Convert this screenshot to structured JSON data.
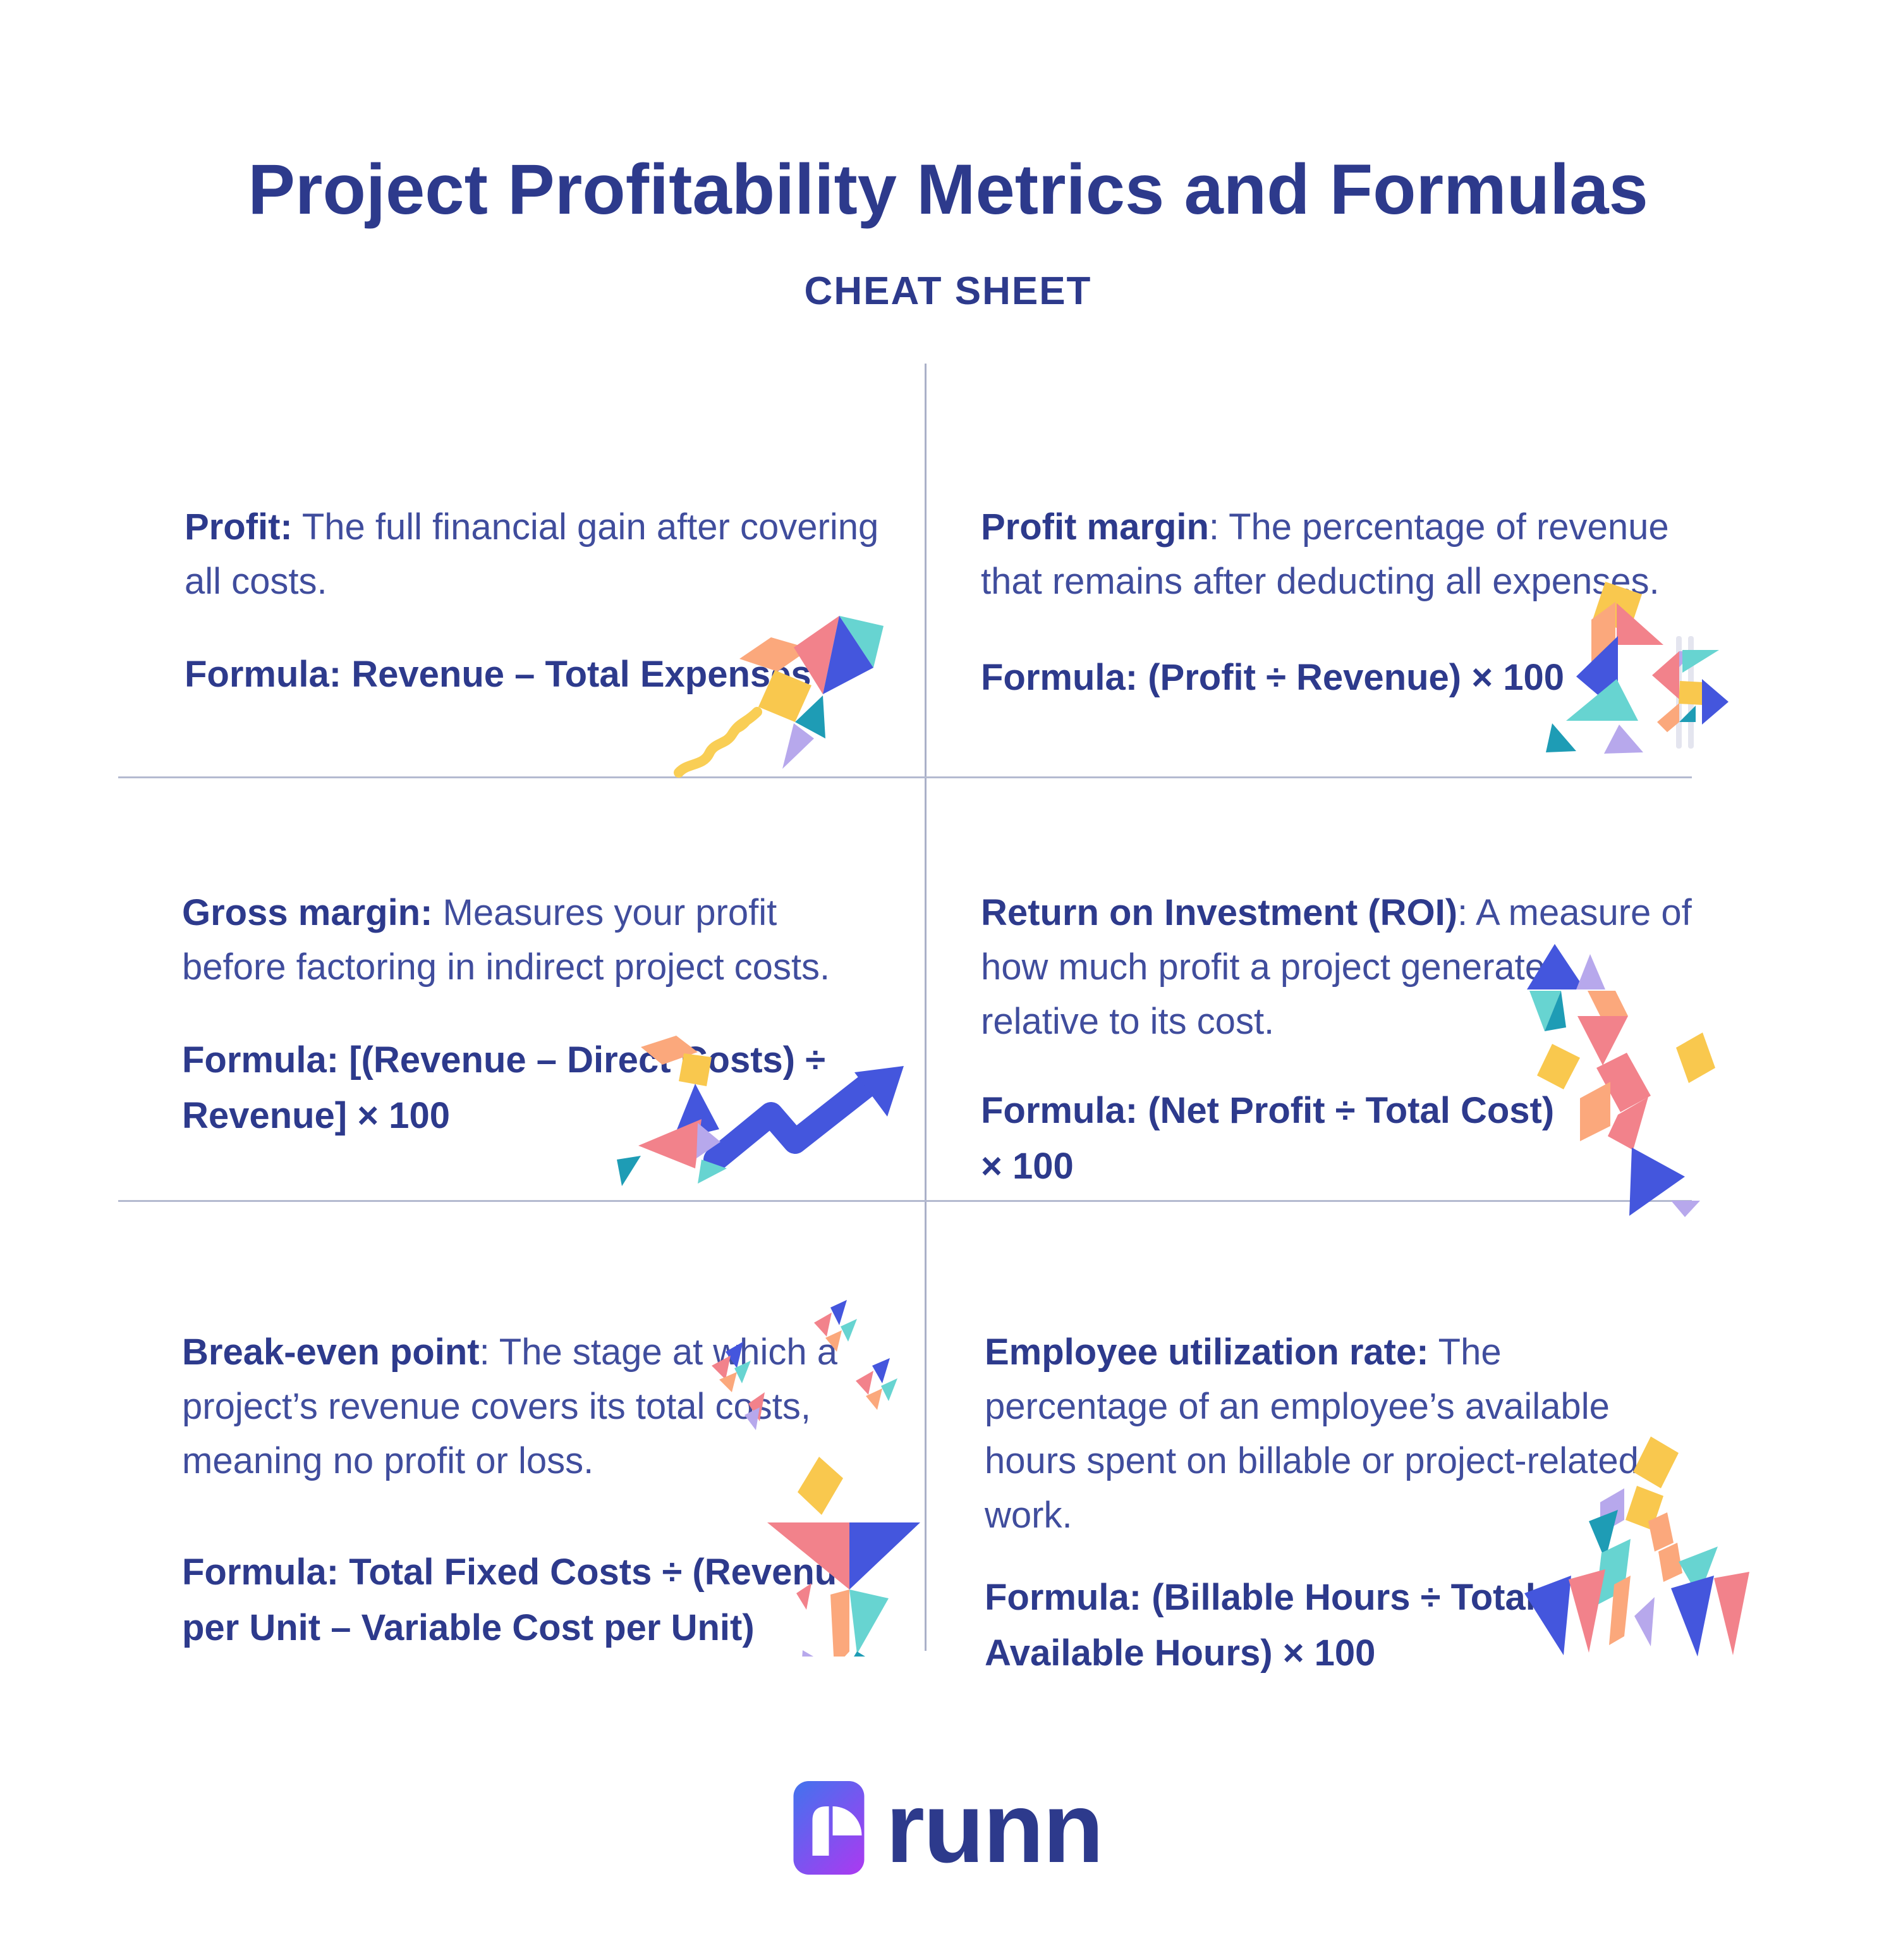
{
  "title": "Project Profitability Metrics and Formulas",
  "subtitle": "CHEAT SHEET",
  "cells": [
    {
      "term": "Profit:",
      "rest_lines": [
        " The full financial gain after covering",
        "all costs."
      ],
      "formula_lines": [
        "Formula: Revenue – Total Expenses"
      ],
      "illustration": "rocket-kite"
    },
    {
      "term": "Profit margin",
      "rest_lines": [
        ": The percentage of revenue",
        "that remains after deducting all expenses."
      ],
      "formula_lines": [
        "Formula: (Profit ÷ Revenue) × 100"
      ],
      "illustration": "runner-with-dollar"
    },
    {
      "term": "Gross margin:",
      "rest_lines": [
        " Measures your profit",
        "before factoring in indirect project costs."
      ],
      "formula_lines": [
        "Formula: [(Revenue – Direct Costs) ÷",
        "Revenue] × 100"
      ],
      "illustration": "person-growth-arrow"
    },
    {
      "term": "Return on Investment (ROI)",
      "rest_lines": [
        ": A measure of",
        "how much profit a project generates",
        "relative to its cost."
      ],
      "formula_lines": [
        "Formula: (Net Profit ÷ Total Cost)",
        "× 100"
      ],
      "illustration": "roi-climber"
    },
    {
      "term": "Break-even point",
      "rest_lines": [
        ": The stage at which a",
        "project’s revenue covers its total costs,",
        "meaning no profit or loss."
      ],
      "formula_lines": [
        "Formula: Total Fixed Costs ÷ (Revenue",
        "per Unit – Variable Cost per Unit)"
      ],
      "illustration": "figure-with-butterflies"
    },
    {
      "term": "Employee utilization rate:",
      "rest_lines": [
        " The",
        "percentage of an employee’s available",
        "hours spent on billable or project-related",
        "work."
      ],
      "formula_lines": [
        "Formula: (Billable Hours ÷ Total",
        "Available Hours) × 100"
      ],
      "illustration": "walking-people"
    }
  ],
  "logo": {
    "brand": "runn"
  },
  "palette": {
    "navy": "#2d3a8c",
    "body_text": "#404d9d",
    "divider": "#aab0c8",
    "coral": "#f2828b",
    "blue": "#4456dd",
    "teal": "#67d4d1",
    "dark_teal": "#1e9cb5",
    "orange": "#fba87c",
    "yellow": "#f9c84e",
    "lavender": "#b7a8ec",
    "logo_gradient_start": "#4273ee",
    "logo_gradient_end": "#ac39f1"
  }
}
